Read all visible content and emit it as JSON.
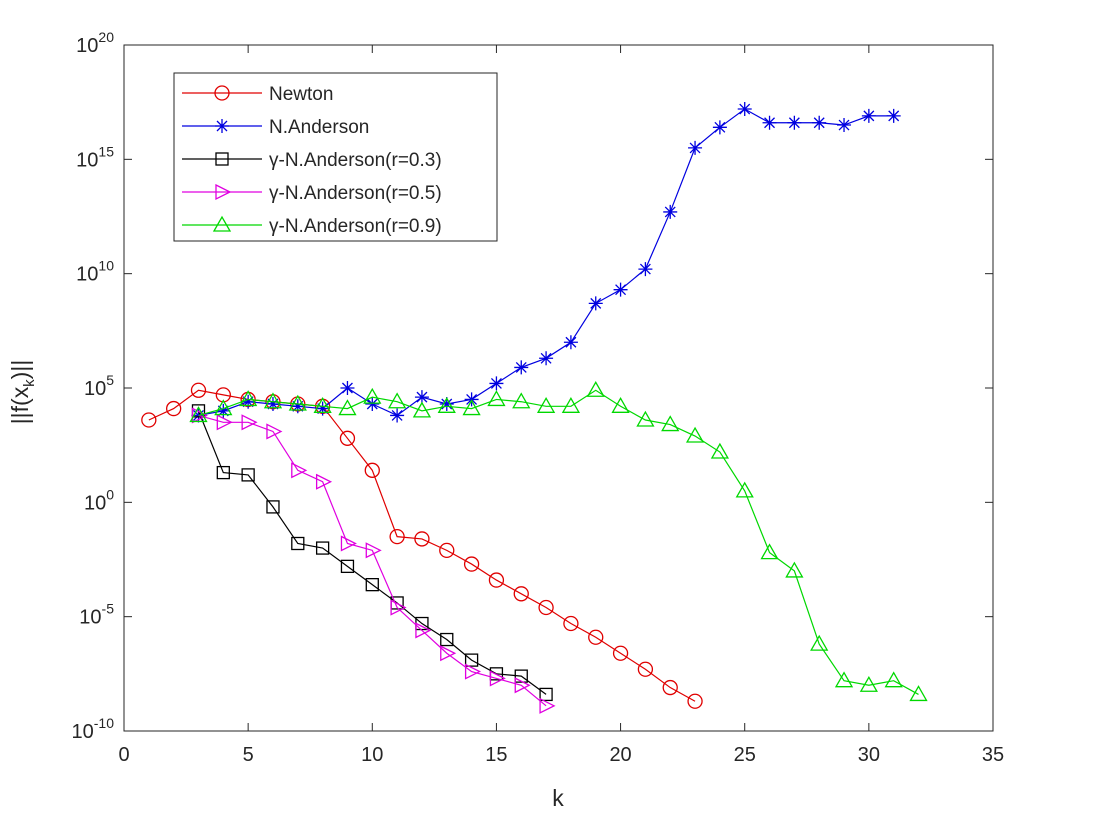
{
  "chart_data": {
    "type": "line",
    "title": "",
    "xlabel": "k",
    "ylabel": "||f(x_k)||",
    "ylabel_main": "||f(x",
    "ylabel_sub": "k",
    "ylabel_end": ")||",
    "yscale": "log10",
    "xlim": [
      0,
      35
    ],
    "ylim_exp": [
      -10,
      20
    ],
    "xticks": [
      "0",
      "5",
      "10",
      "15",
      "20",
      "25",
      "30",
      "35"
    ],
    "ytick_base": "10",
    "ytick_exps": [
      "-10",
      "-5",
      "0",
      "5",
      "10",
      "15",
      "20"
    ],
    "legend_position": "top-left",
    "series": [
      {
        "name": "Newton",
        "color": "#e00000",
        "marker": "circle",
        "x": [
          1,
          2,
          3,
          4,
          5,
          6,
          7,
          8,
          9,
          10,
          11,
          12,
          13,
          14,
          15,
          16,
          17,
          18,
          19,
          20,
          21,
          22,
          23
        ],
        "log10_y": [
          3.6,
          4.1,
          4.9,
          4.7,
          4.5,
          4.4,
          4.3,
          4.2,
          2.8,
          1.4,
          -1.5,
          -1.6,
          -2.1,
          -2.7,
          -3.4,
          -4.0,
          -4.6,
          -5.3,
          -5.9,
          -6.6,
          -7.3,
          -8.1,
          -8.7
        ]
      },
      {
        "name": "N.Anderson",
        "color": "#0000e0",
        "marker": "star",
        "x": [
          3,
          4,
          5,
          6,
          7,
          8,
          9,
          10,
          11,
          12,
          13,
          14,
          15,
          16,
          17,
          18,
          19,
          20,
          21,
          22,
          23,
          24,
          25,
          26,
          27,
          28,
          29,
          30,
          31
        ],
        "log10_y": [
          3.8,
          4.0,
          4.4,
          4.3,
          4.2,
          4.1,
          5.0,
          4.3,
          3.8,
          4.6,
          4.3,
          4.5,
          5.2,
          5.9,
          6.3,
          7.0,
          8.7,
          9.3,
          10.2,
          12.7,
          15.5,
          16.4,
          17.2,
          16.6,
          16.6,
          16.6,
          16.5,
          16.9,
          16.9
        ]
      },
      {
        "name": "γ-N.Anderson(r=0.3)",
        "color": "#000000",
        "marker": "square",
        "x": [
          3,
          4,
          5,
          6,
          7,
          8,
          9,
          10,
          11,
          12,
          13,
          14,
          15,
          16,
          17
        ],
        "log10_y": [
          4.0,
          1.3,
          1.2,
          -0.2,
          -1.8,
          -2.0,
          -2.8,
          -3.6,
          -4.4,
          -5.3,
          -6.0,
          -6.9,
          -7.5,
          -7.6,
          -8.4
        ]
      },
      {
        "name": "γ-N.Anderson(r=0.5)",
        "color": "#e000e0",
        "marker": "triangle-right",
        "x": [
          3,
          4,
          5,
          6,
          7,
          8,
          9,
          10,
          11,
          12,
          13,
          14,
          15,
          16,
          17
        ],
        "log10_y": [
          3.8,
          3.5,
          3.5,
          3.1,
          1.4,
          0.9,
          -1.8,
          -2.1,
          -4.6,
          -5.6,
          -6.6,
          -7.4,
          -7.7,
          -8.0,
          -8.9
        ]
      },
      {
        "name": "γ-N.Anderson(r=0.9)",
        "color": "#00d800",
        "marker": "triangle-up",
        "x": [
          3,
          4,
          5,
          6,
          7,
          8,
          9,
          10,
          11,
          12,
          13,
          14,
          15,
          16,
          17,
          18,
          19,
          20,
          21,
          22,
          23,
          24,
          25,
          26,
          27,
          28,
          29,
          30,
          31,
          32
        ],
        "log10_y": [
          3.8,
          4.1,
          4.5,
          4.4,
          4.3,
          4.2,
          4.1,
          4.6,
          4.4,
          4.0,
          4.2,
          4.1,
          4.5,
          4.4,
          4.2,
          4.2,
          4.9,
          4.2,
          3.6,
          3.4,
          2.9,
          2.2,
          0.5,
          -2.2,
          -3.0,
          -6.2,
          -7.8,
          -8.0,
          -7.8,
          -8.4
        ]
      }
    ]
  }
}
